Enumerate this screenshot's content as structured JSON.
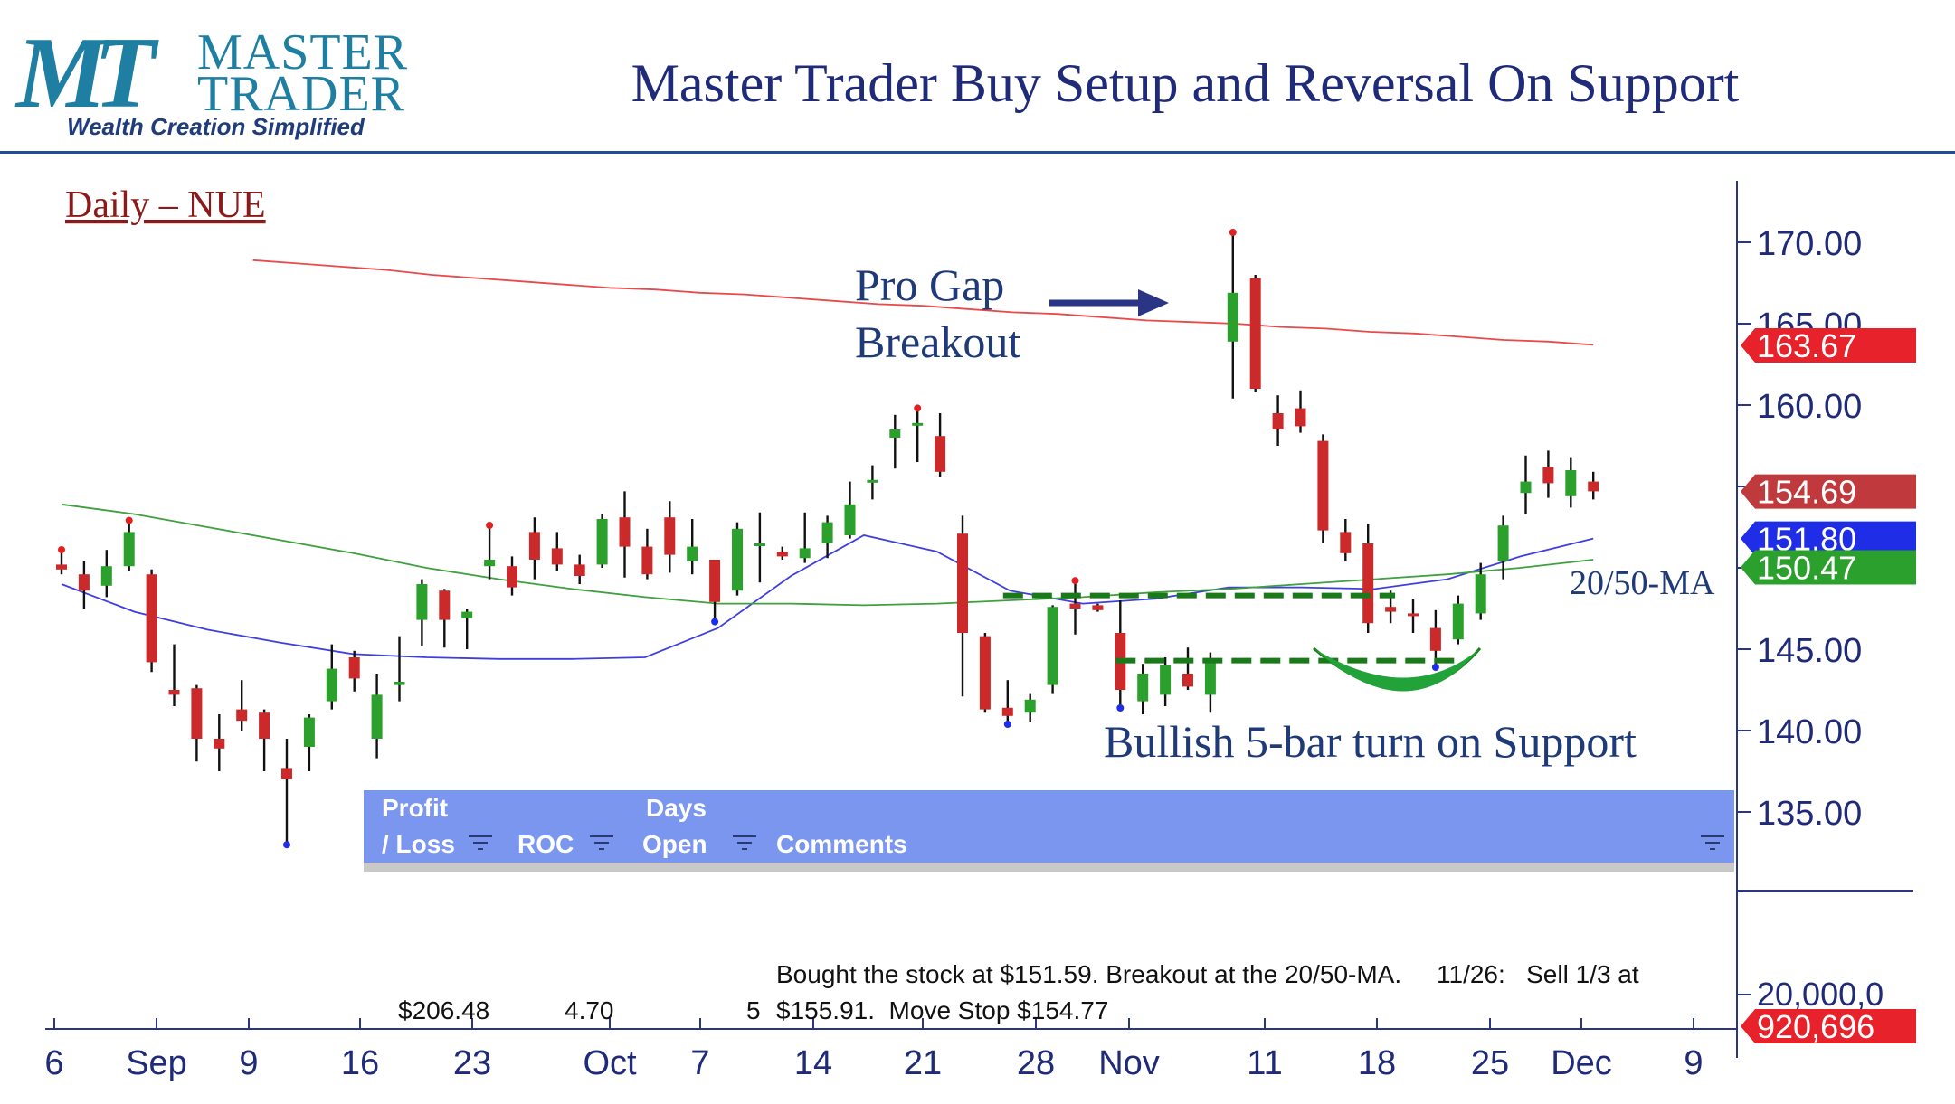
{
  "header": {
    "logo_letters": "MT",
    "logo_word1": "MASTER",
    "logo_word2": "TRADER",
    "tagline": "Wealth Creation Simplified",
    "title": "Master Trader Buy Setup and Reversal On Support"
  },
  "colors": {
    "up_candle": "#2ca02c",
    "down_candle": "#cc2a2a",
    "ma_200": "#e84a4a",
    "ma_20": "#3f3fe0",
    "ma_50": "#3ea03e",
    "annotation_text": "#1f3a78",
    "support_lines": "#1a7a1a",
    "table_header": "#7b96ee"
  },
  "chart_data": {
    "type": "candlestick",
    "symbol_label": "Daily – NUE",
    "ylim": [
      131,
      172
    ],
    "y_ticks": [
      "170.00",
      "165.00",
      "160.00",
      "155.00",
      "150.00",
      "145.00",
      "140.00",
      "135.00"
    ],
    "volume_tick": "20,000,0",
    "x_ticks": [
      "6",
      "Sep",
      "9",
      "16",
      "23",
      "Oct",
      "7",
      "14",
      "21",
      "28",
      "Nov",
      "11",
      "18",
      "25",
      "Dec",
      "9"
    ],
    "price_tags": [
      {
        "label": "163.67",
        "value": 163.67,
        "color": "#e8222a"
      },
      {
        "label": "154.69",
        "value": 154.69,
        "color": "#c0393c"
      },
      {
        "label": "151.80",
        "value": 151.8,
        "color": "#1f2ee6"
      },
      {
        "label": "150.47",
        "value": 150.47,
        "color": "#2ca02c"
      }
    ],
    "volume_tag": {
      "label": "920,696",
      "color": "#e8222a"
    },
    "candles": [
      {
        "o": 150.2,
        "h": 151.0,
        "l": 149.6,
        "c": 149.9
      },
      {
        "o": 149.6,
        "h": 150.4,
        "l": 147.5,
        "c": 148.6
      },
      {
        "o": 148.9,
        "h": 151.1,
        "l": 148.2,
        "c": 150.1
      },
      {
        "o": 150.1,
        "h": 152.8,
        "l": 149.8,
        "c": 152.2
      },
      {
        "o": 149.6,
        "h": 149.9,
        "l": 143.6,
        "c": 144.2
      },
      {
        "o": 142.5,
        "h": 145.3,
        "l": 141.5,
        "c": 142.2
      },
      {
        "o": 142.6,
        "h": 142.8,
        "l": 138.1,
        "c": 139.5
      },
      {
        "o": 139.5,
        "h": 141.0,
        "l": 137.5,
        "c": 138.9
      },
      {
        "o": 141.3,
        "h": 143.1,
        "l": 140.0,
        "c": 140.6
      },
      {
        "o": 141.1,
        "h": 141.3,
        "l": 137.5,
        "c": 139.5
      },
      {
        "o": 137.7,
        "h": 139.5,
        "l": 133.1,
        "c": 137.0
      },
      {
        "o": 139.0,
        "h": 141.0,
        "l": 137.5,
        "c": 140.8
      },
      {
        "o": 141.8,
        "h": 145.3,
        "l": 141.3,
        "c": 143.8
      },
      {
        "o": 144.5,
        "h": 144.9,
        "l": 142.4,
        "c": 143.2
      },
      {
        "o": 139.5,
        "h": 143.5,
        "l": 138.3,
        "c": 142.2
      },
      {
        "o": 142.8,
        "h": 145.8,
        "l": 141.8,
        "c": 143.0
      },
      {
        "o": 146.8,
        "h": 149.3,
        "l": 145.2,
        "c": 149.0
      },
      {
        "o": 148.6,
        "h": 148.7,
        "l": 145.1,
        "c": 146.8
      },
      {
        "o": 146.9,
        "h": 147.5,
        "l": 145.0,
        "c": 147.3
      },
      {
        "o": 150.1,
        "h": 152.5,
        "l": 149.3,
        "c": 150.5
      },
      {
        "o": 150.1,
        "h": 150.7,
        "l": 148.3,
        "c": 148.8
      },
      {
        "o": 152.2,
        "h": 153.1,
        "l": 149.3,
        "c": 150.5
      },
      {
        "o": 151.2,
        "h": 152.2,
        "l": 149.8,
        "c": 150.2
      },
      {
        "o": 150.2,
        "h": 150.8,
        "l": 149.0,
        "c": 149.5
      },
      {
        "o": 150.2,
        "h": 153.3,
        "l": 150.0,
        "c": 153.0
      },
      {
        "o": 153.1,
        "h": 154.7,
        "l": 149.4,
        "c": 151.3
      },
      {
        "o": 151.3,
        "h": 152.4,
        "l": 149.3,
        "c": 149.6
      },
      {
        "o": 153.1,
        "h": 154.1,
        "l": 149.7,
        "c": 150.8
      },
      {
        "o": 150.4,
        "h": 153.0,
        "l": 149.6,
        "c": 151.3
      },
      {
        "o": 150.5,
        "h": 150.5,
        "l": 146.8,
        "c": 147.9
      },
      {
        "o": 148.6,
        "h": 152.8,
        "l": 148.3,
        "c": 152.4
      },
      {
        "o": 151.4,
        "h": 153.4,
        "l": 149.1,
        "c": 151.5
      },
      {
        "o": 151.0,
        "h": 151.3,
        "l": 150.5,
        "c": 150.7
      },
      {
        "o": 150.6,
        "h": 153.4,
        "l": 150.3,
        "c": 151.2
      },
      {
        "o": 151.5,
        "h": 153.2,
        "l": 150.6,
        "c": 152.8
      },
      {
        "o": 152.0,
        "h": 155.3,
        "l": 151.8,
        "c": 153.9
      },
      {
        "o": 155.3,
        "h": 156.3,
        "l": 154.2,
        "c": 155.4
      },
      {
        "o": 158.0,
        "h": 159.4,
        "l": 156.1,
        "c": 158.5
      },
      {
        "o": 158.8,
        "h": 159.7,
        "l": 156.5,
        "c": 158.9
      },
      {
        "o": 158.1,
        "h": 159.5,
        "l": 155.6,
        "c": 155.9
      },
      {
        "o": 152.1,
        "h": 153.2,
        "l": 142.1,
        "c": 146.0
      },
      {
        "o": 145.8,
        "h": 146.0,
        "l": 141.1,
        "c": 141.3
      },
      {
        "o": 141.4,
        "h": 143.1,
        "l": 140.5,
        "c": 140.9
      },
      {
        "o": 141.1,
        "h": 142.3,
        "l": 140.5,
        "c": 141.9
      },
      {
        "o": 142.8,
        "h": 147.7,
        "l": 142.3,
        "c": 147.6
      },
      {
        "o": 147.8,
        "h": 149.1,
        "l": 145.9,
        "c": 147.5
      },
      {
        "o": 147.7,
        "h": 147.8,
        "l": 147.3,
        "c": 147.4
      },
      {
        "o": 146.0,
        "h": 148.0,
        "l": 141.5,
        "c": 142.5
      },
      {
        "o": 141.8,
        "h": 144.1,
        "l": 141.0,
        "c": 143.5
      },
      {
        "o": 142.2,
        "h": 144.5,
        "l": 141.5,
        "c": 144.0
      },
      {
        "o": 143.5,
        "h": 145.1,
        "l": 142.5,
        "c": 142.7
      },
      {
        "o": 142.2,
        "h": 144.8,
        "l": 141.1,
        "c": 144.3
      },
      {
        "o": 163.9,
        "h": 170.5,
        "l": 160.4,
        "c": 166.9
      },
      {
        "o": 167.8,
        "h": 168.0,
        "l": 160.8,
        "c": 161.0
      },
      {
        "o": 159.5,
        "h": 160.6,
        "l": 157.5,
        "c": 158.5
      },
      {
        "o": 159.8,
        "h": 160.9,
        "l": 158.3,
        "c": 158.7
      },
      {
        "o": 157.8,
        "h": 158.2,
        "l": 151.5,
        "c": 152.3
      },
      {
        "o": 152.2,
        "h": 153.0,
        "l": 150.4,
        "c": 150.9
      },
      {
        "o": 151.5,
        "h": 152.7,
        "l": 146.0,
        "c": 146.6
      },
      {
        "o": 147.6,
        "h": 148.6,
        "l": 146.6,
        "c": 147.3
      },
      {
        "o": 147.2,
        "h": 148.1,
        "l": 146.0,
        "c": 147.1
      },
      {
        "o": 146.3,
        "h": 147.4,
        "l": 144.0,
        "c": 144.9
      },
      {
        "o": 145.6,
        "h": 148.3,
        "l": 145.3,
        "c": 147.8
      },
      {
        "o": 147.2,
        "h": 150.3,
        "l": 146.8,
        "c": 149.6
      },
      {
        "o": 150.4,
        "h": 153.2,
        "l": 149.3,
        "c": 152.6
      },
      {
        "o": 154.6,
        "h": 156.9,
        "l": 153.3,
        "c": 155.3
      },
      {
        "o": 156.2,
        "h": 157.2,
        "l": 154.3,
        "c": 155.2
      },
      {
        "o": 154.4,
        "h": 156.8,
        "l": 153.7,
        "c": 156.0
      },
      {
        "o": 155.3,
        "h": 155.9,
        "l": 154.2,
        "c": 154.7
      }
    ],
    "ma_200": [
      168.9,
      168.7,
      168.5,
      168.3,
      168.0,
      167.8,
      167.6,
      167.4,
      167.2,
      167.1,
      166.9,
      166.8,
      166.6,
      166.4,
      166.2,
      166.1,
      165.9,
      165.7,
      165.6,
      165.4,
      165.2,
      165.1,
      165.0,
      164.8,
      164.7,
      164.5,
      164.4,
      164.2,
      164.0,
      163.9,
      163.7
    ],
    "ma_20": [
      149.0,
      147.3,
      146.2,
      145.4,
      144.7,
      144.5,
      144.4,
      144.4,
      144.5,
      146.3,
      149.5,
      152.0,
      151.0,
      148.6,
      147.8,
      148.1,
      148.8,
      148.8,
      148.7,
      149.3,
      150.7,
      151.8
    ],
    "ma_50": [
      153.9,
      153.3,
      152.5,
      151.7,
      150.9,
      150.0,
      149.3,
      148.7,
      148.2,
      147.8,
      147.8,
      147.7,
      147.8,
      148.0,
      148.2,
      148.5,
      148.7,
      149.0,
      149.3,
      149.6,
      150.0,
      150.5
    ],
    "swing_highs": [
      0,
      3,
      19,
      38,
      45,
      52
    ],
    "swing_lows": [
      10,
      29,
      42,
      47,
      61
    ],
    "support_levels": [
      {
        "value": 148.3,
        "from": 42,
        "to": 59
      },
      {
        "value": 144.3,
        "from": 47,
        "to": 62
      }
    ]
  },
  "annotations": {
    "pro_gap_line1": "Pro Gap",
    "pro_gap_line2": "Breakout",
    "ma_label": "20/50-MA",
    "turn_label": "Bullish 5-bar turn on Support"
  },
  "table": {
    "col_profit_l1": "Profit",
    "col_profit_l2": "/ Loss",
    "col_roc": "ROC",
    "col_days_l1": "Days",
    "col_days_l2": "Open",
    "col_comments": "Comments",
    "profit_value": "$206.48",
    "roc_value": "4.70",
    "days_value": "5",
    "comment_line1": "Bought the stock at $151.59. Breakout at the 20/50-MA.     11/26:   Sell 1/3 at",
    "comment_line2": "$155.91.  Move Stop $154.77"
  }
}
